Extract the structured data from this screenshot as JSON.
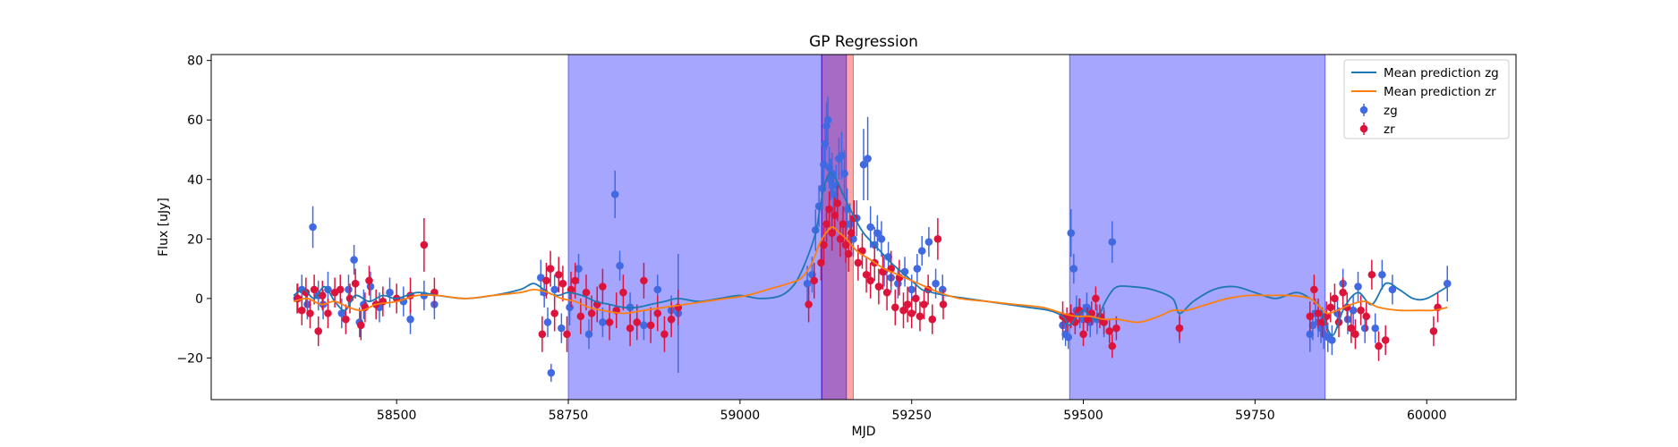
{
  "chart_data": {
    "type": "scatter",
    "title": "GP Regression",
    "xlabel": "MJD",
    "ylabel": "Flux [uJy]",
    "xlim": [
      58230,
      60130
    ],
    "ylim": [
      -34,
      82
    ],
    "xticks": [
      58500,
      58750,
      59000,
      59250,
      59500,
      59750,
      60000
    ],
    "yticks": [
      -20,
      0,
      20,
      40,
      60,
      80
    ],
    "grid": false,
    "legend_position": "upper-right",
    "legend": [
      {
        "label": "Mean prediction zg",
        "kind": "line",
        "color": "#1f77b4"
      },
      {
        "label": "Mean prediction zr",
        "kind": "line",
        "color": "#ff7f0e"
      },
      {
        "label": "zg",
        "kind": "errorbar",
        "color": "#4169e1"
      },
      {
        "label": "zr",
        "kind": "errorbar",
        "color": "#dc143c"
      }
    ],
    "shaded_regions": [
      {
        "x0": 58750,
        "x1": 59119,
        "color": "#0000ff",
        "alpha": 0.35
      },
      {
        "x0": 59119,
        "x1": 59165,
        "color": "#ff0000",
        "alpha": 0.35
      },
      {
        "x0": 59119,
        "x1": 59155,
        "color": "#0000ff",
        "alpha": 0.35
      },
      {
        "x0": 59480,
        "x1": 59852,
        "color": "#0000ff",
        "alpha": 0.35
      }
    ],
    "series": [
      {
        "name": "Mean prediction zg",
        "kind": "line",
        "color": "#1f77b4",
        "x": [
          58350,
          58365,
          58380,
          58395,
          58410,
          58425,
          58440,
          58460,
          58480,
          58500,
          58530,
          58560,
          58600,
          58640,
          58680,
          58700,
          58720,
          58735,
          58750,
          58770,
          58790,
          58810,
          58830,
          58850,
          58870,
          58890,
          58910,
          58940,
          58970,
          59000,
          59030,
          59060,
          59080,
          59095,
          59110,
          59120,
          59130,
          59140,
          59150,
          59165,
          59180,
          59200,
          59220,
          59235,
          59250,
          59265,
          59280,
          59300,
          59330,
          59360,
          59390,
          59420,
          59450,
          59470,
          59480,
          59490,
          59500,
          59510,
          59520,
          59530,
          59540,
          59550,
          59570,
          59600,
          59630,
          59640,
          59660,
          59690,
          59720,
          59750,
          59780,
          59810,
          59830,
          59845,
          59855,
          59865,
          59880,
          59900,
          59920,
          59940,
          59960,
          59980,
          60000,
          60030
        ],
        "y": [
          1,
          3,
          0,
          4,
          -1,
          -4,
          1,
          -1,
          1,
          0,
          2,
          1,
          0,
          1,
          3,
          5,
          2,
          1,
          2,
          1,
          -1,
          -2,
          -3,
          -3,
          -2,
          -1,
          0,
          -1,
          0,
          1,
          0,
          1,
          5,
          12,
          22,
          35,
          42,
          40,
          35,
          28,
          22,
          17,
          12,
          9,
          6,
          3,
          2,
          1,
          0,
          -1,
          -2,
          -3,
          -4,
          -6,
          -9,
          -6,
          -4,
          -6,
          -7,
          -2,
          2,
          4,
          4,
          3,
          0,
          -5,
          -1,
          3,
          4,
          2,
          0,
          2,
          0,
          -3,
          -10,
          -12,
          -3,
          2,
          -2,
          5,
          3,
          0,
          0,
          4
        ]
      },
      {
        "name": "Mean prediction zr",
        "kind": "line",
        "color": "#ff7f0e",
        "x": [
          58350,
          58370,
          58390,
          58410,
          58430,
          58450,
          58470,
          58500,
          58530,
          58560,
          58600,
          58640,
          58680,
          58700,
          58720,
          58740,
          58760,
          58780,
          58800,
          58830,
          58860,
          58890,
          58920,
          58950,
          58980,
          59010,
          59040,
          59070,
          59090,
          59105,
          59115,
          59125,
          59135,
          59145,
          59155,
          59170,
          59190,
          59210,
          59230,
          59250,
          59270,
          59290,
          59320,
          59360,
          59400,
          59440,
          59470,
          59490,
          59510,
          59530,
          59550,
          59580,
          59610,
          59630,
          59650,
          59680,
          59710,
          59740,
          59770,
          59800,
          59830,
          59845,
          59855,
          59870,
          59890,
          59910,
          59930,
          59960,
          59990,
          60010,
          60030
        ],
        "y": [
          -1,
          0,
          -2,
          -1,
          -3,
          -4,
          -2,
          -1,
          1,
          1,
          0,
          1,
          2,
          3,
          2,
          0,
          -1,
          -3,
          -4,
          -5,
          -4,
          -3,
          -2,
          -1,
          0,
          1,
          3,
          5,
          7,
          12,
          18,
          22,
          24,
          22,
          20,
          16,
          13,
          10,
          8,
          6,
          4,
          2,
          0,
          -1,
          -2,
          -3,
          -5,
          -6,
          -6,
          -7,
          -7,
          -8,
          -6,
          -4,
          -4,
          -2,
          0,
          1,
          1,
          1,
          0,
          -3,
          -5,
          -4,
          -2,
          -1,
          -3,
          -4,
          -4,
          -4,
          -3
        ]
      },
      {
        "name": "zg",
        "kind": "errorbar",
        "color": "#4169e1",
        "x": [
          58355,
          58362,
          58370,
          58378,
          58386,
          58393,
          58400,
          58420,
          58430,
          58438,
          58446,
          58452,
          58462,
          58475,
          58490,
          58510,
          58520,
          58540,
          58555,
          58710,
          58715,
          58720,
          58725,
          58730,
          58740,
          58752,
          58765,
          58780,
          58800,
          58818,
          58825,
          58840,
          58860,
          58880,
          58900,
          58910,
          59098,
          59105,
          59110,
          59115,
          59120,
          59122,
          59124,
          59126,
          59128,
          59130,
          59132,
          59134,
          59136,
          59140,
          59144,
          59148,
          59152,
          59156,
          59160,
          59165,
          59170,
          59180,
          59186,
          59190,
          59196,
          59200,
          59206,
          59210,
          59216,
          59220,
          59230,
          59240,
          59250,
          59258,
          59265,
          59275,
          59285,
          59295,
          59470,
          59474,
          59478,
          59482,
          59486,
          59490,
          59495,
          59500,
          59505,
          59510,
          59520,
          59530,
          59542,
          59640,
          59830,
          59834,
          59838,
          59842,
          59846,
          59850,
          59856,
          59862,
          59870,
          59878,
          59885,
          59893,
          59900,
          59910,
          59925,
          59935,
          59950,
          60030
        ],
        "y": [
          0,
          3,
          -2,
          24,
          1,
          -2,
          3,
          -5,
          3,
          13,
          -8,
          -2,
          4,
          -3,
          2,
          -1,
          -7,
          1,
          -2,
          7,
          2,
          -8,
          -25,
          3,
          -10,
          -3,
          10,
          -12,
          -8,
          35,
          11,
          -3,
          -9,
          3,
          -4,
          -5,
          5,
          8,
          23,
          31,
          37,
          45,
          52,
          58,
          60,
          44,
          40,
          42,
          35,
          38,
          47,
          48,
          42,
          30,
          25,
          20,
          27,
          45,
          47,
          24,
          18,
          22,
          20,
          9,
          14,
          7,
          5,
          9,
          3,
          10,
          16,
          19,
          5,
          3,
          -9,
          -12,
          -13,
          22,
          10,
          -4,
          -5,
          -7,
          -3,
          -8,
          -7,
          -8,
          19,
          -10,
          -12,
          -9,
          -5,
          -8,
          -10,
          -12,
          -13,
          -14,
          -5,
          5,
          -7,
          -4,
          4,
          -10,
          -10,
          8,
          3,
          5
        ],
        "err": [
          5,
          5,
          5,
          7,
          5,
          5,
          6,
          5,
          5,
          5,
          5,
          5,
          5,
          5,
          5,
          5,
          5,
          5,
          5,
          6,
          5,
          5,
          3,
          5,
          5,
          6,
          5,
          5,
          5,
          8,
          5,
          5,
          5,
          5,
          5,
          20,
          6,
          6,
          7,
          7,
          7,
          8,
          8,
          8,
          8,
          7,
          7,
          7,
          7,
          7,
          7,
          8,
          8,
          7,
          7,
          6,
          6,
          12,
          14,
          7,
          6,
          6,
          6,
          5,
          5,
          5,
          5,
          5,
          5,
          5,
          5,
          5,
          5,
          5,
          5,
          4,
          4,
          8,
          5,
          5,
          5,
          5,
          5,
          5,
          5,
          5,
          7,
          5,
          6,
          5,
          5,
          5,
          5,
          5,
          5,
          5,
          5,
          5,
          5,
          5,
          5,
          5,
          5,
          5,
          5,
          6
        ]
      },
      {
        "name": "zr",
        "kind": "errorbar",
        "color": "#dc143c",
        "x": [
          58356,
          58362,
          58368,
          58374,
          58380,
          58386,
          58392,
          58400,
          58410,
          58418,
          58426,
          58432,
          58440,
          58448,
          58454,
          58460,
          58470,
          58480,
          58500,
          58520,
          58540,
          58555,
          58712,
          58718,
          58724,
          58730,
          58736,
          58742,
          58748,
          58754,
          58760,
          58768,
          58776,
          58784,
          58792,
          58800,
          58810,
          58820,
          58830,
          58840,
          58850,
          58860,
          58870,
          58880,
          58890,
          58900,
          58910,
          59100,
          59108,
          59118,
          59122,
          59126,
          59130,
          59134,
          59138,
          59142,
          59146,
          59150,
          59154,
          59158,
          59162,
          59166,
          59172,
          59178,
          59184,
          59190,
          59196,
          59202,
          59208,
          59214,
          59220,
          59226,
          59232,
          59238,
          59244,
          59250,
          59256,
          59262,
          59268,
          59274,
          59280,
          59288,
          59296,
          59470,
          59476,
          59482,
          59488,
          59494,
          59500,
          59506,
          59512,
          59518,
          59524,
          59530,
          59538,
          59542,
          59548,
          59640,
          59830,
          59836,
          59842,
          59848,
          59854,
          59860,
          59866,
          59872,
          59878,
          59884,
          59890,
          59896,
          59904,
          59912,
          59920,
          59930,
          59940,
          60010,
          60016
        ],
        "y": [
          0,
          -4,
          2,
          -5,
          3,
          -11,
          1,
          -5,
          2,
          3,
          -7,
          0,
          5,
          -9,
          -3,
          6,
          -2,
          -1,
          0,
          1,
          18,
          2,
          -12,
          6,
          10,
          -5,
          8,
          5,
          -12,
          3,
          6,
          -6,
          2,
          -5,
          -2,
          4,
          -8,
          -4,
          2,
          -10,
          -8,
          6,
          -9,
          -5,
          -12,
          -7,
          -3,
          -2,
          6,
          12,
          18,
          25,
          30,
          22,
          28,
          32,
          20,
          25,
          18,
          15,
          22,
          27,
          12,
          16,
          8,
          6,
          12,
          4,
          9,
          2,
          10,
          -3,
          7,
          -4,
          -2,
          -5,
          0,
          -6,
          -2,
          3,
          -7,
          20,
          -2,
          -6,
          -7,
          -6,
          -8,
          -4,
          -12,
          -7,
          -5,
          0,
          -6,
          -8,
          -11,
          -16,
          -10,
          -10,
          -6,
          3,
          -5,
          -8,
          -6,
          -3,
          0,
          -8,
          2,
          -3,
          -10,
          -12,
          -4,
          -6,
          8,
          -16,
          -14,
          -11,
          -3
        ],
        "err": [
          5,
          5,
          5,
          5,
          5,
          5,
          5,
          5,
          5,
          5,
          5,
          5,
          5,
          5,
          5,
          5,
          5,
          5,
          5,
          6,
          9,
          5,
          6,
          6,
          6,
          6,
          6,
          6,
          6,
          6,
          6,
          6,
          6,
          6,
          6,
          6,
          6,
          6,
          6,
          6,
          6,
          6,
          6,
          6,
          6,
          6,
          6,
          6,
          6,
          6,
          6,
          6,
          6,
          6,
          6,
          6,
          6,
          6,
          6,
          6,
          6,
          6,
          6,
          6,
          6,
          6,
          6,
          6,
          6,
          6,
          6,
          6,
          6,
          6,
          6,
          5,
          5,
          5,
          5,
          5,
          5,
          7,
          5,
          5,
          4,
          4,
          4,
          4,
          4,
          4,
          4,
          4,
          4,
          4,
          4,
          4,
          4,
          4,
          5,
          5,
          5,
          5,
          5,
          5,
          5,
          5,
          5,
          5,
          5,
          5,
          5,
          5,
          5,
          5,
          5,
          5,
          5
        ]
      }
    ]
  }
}
